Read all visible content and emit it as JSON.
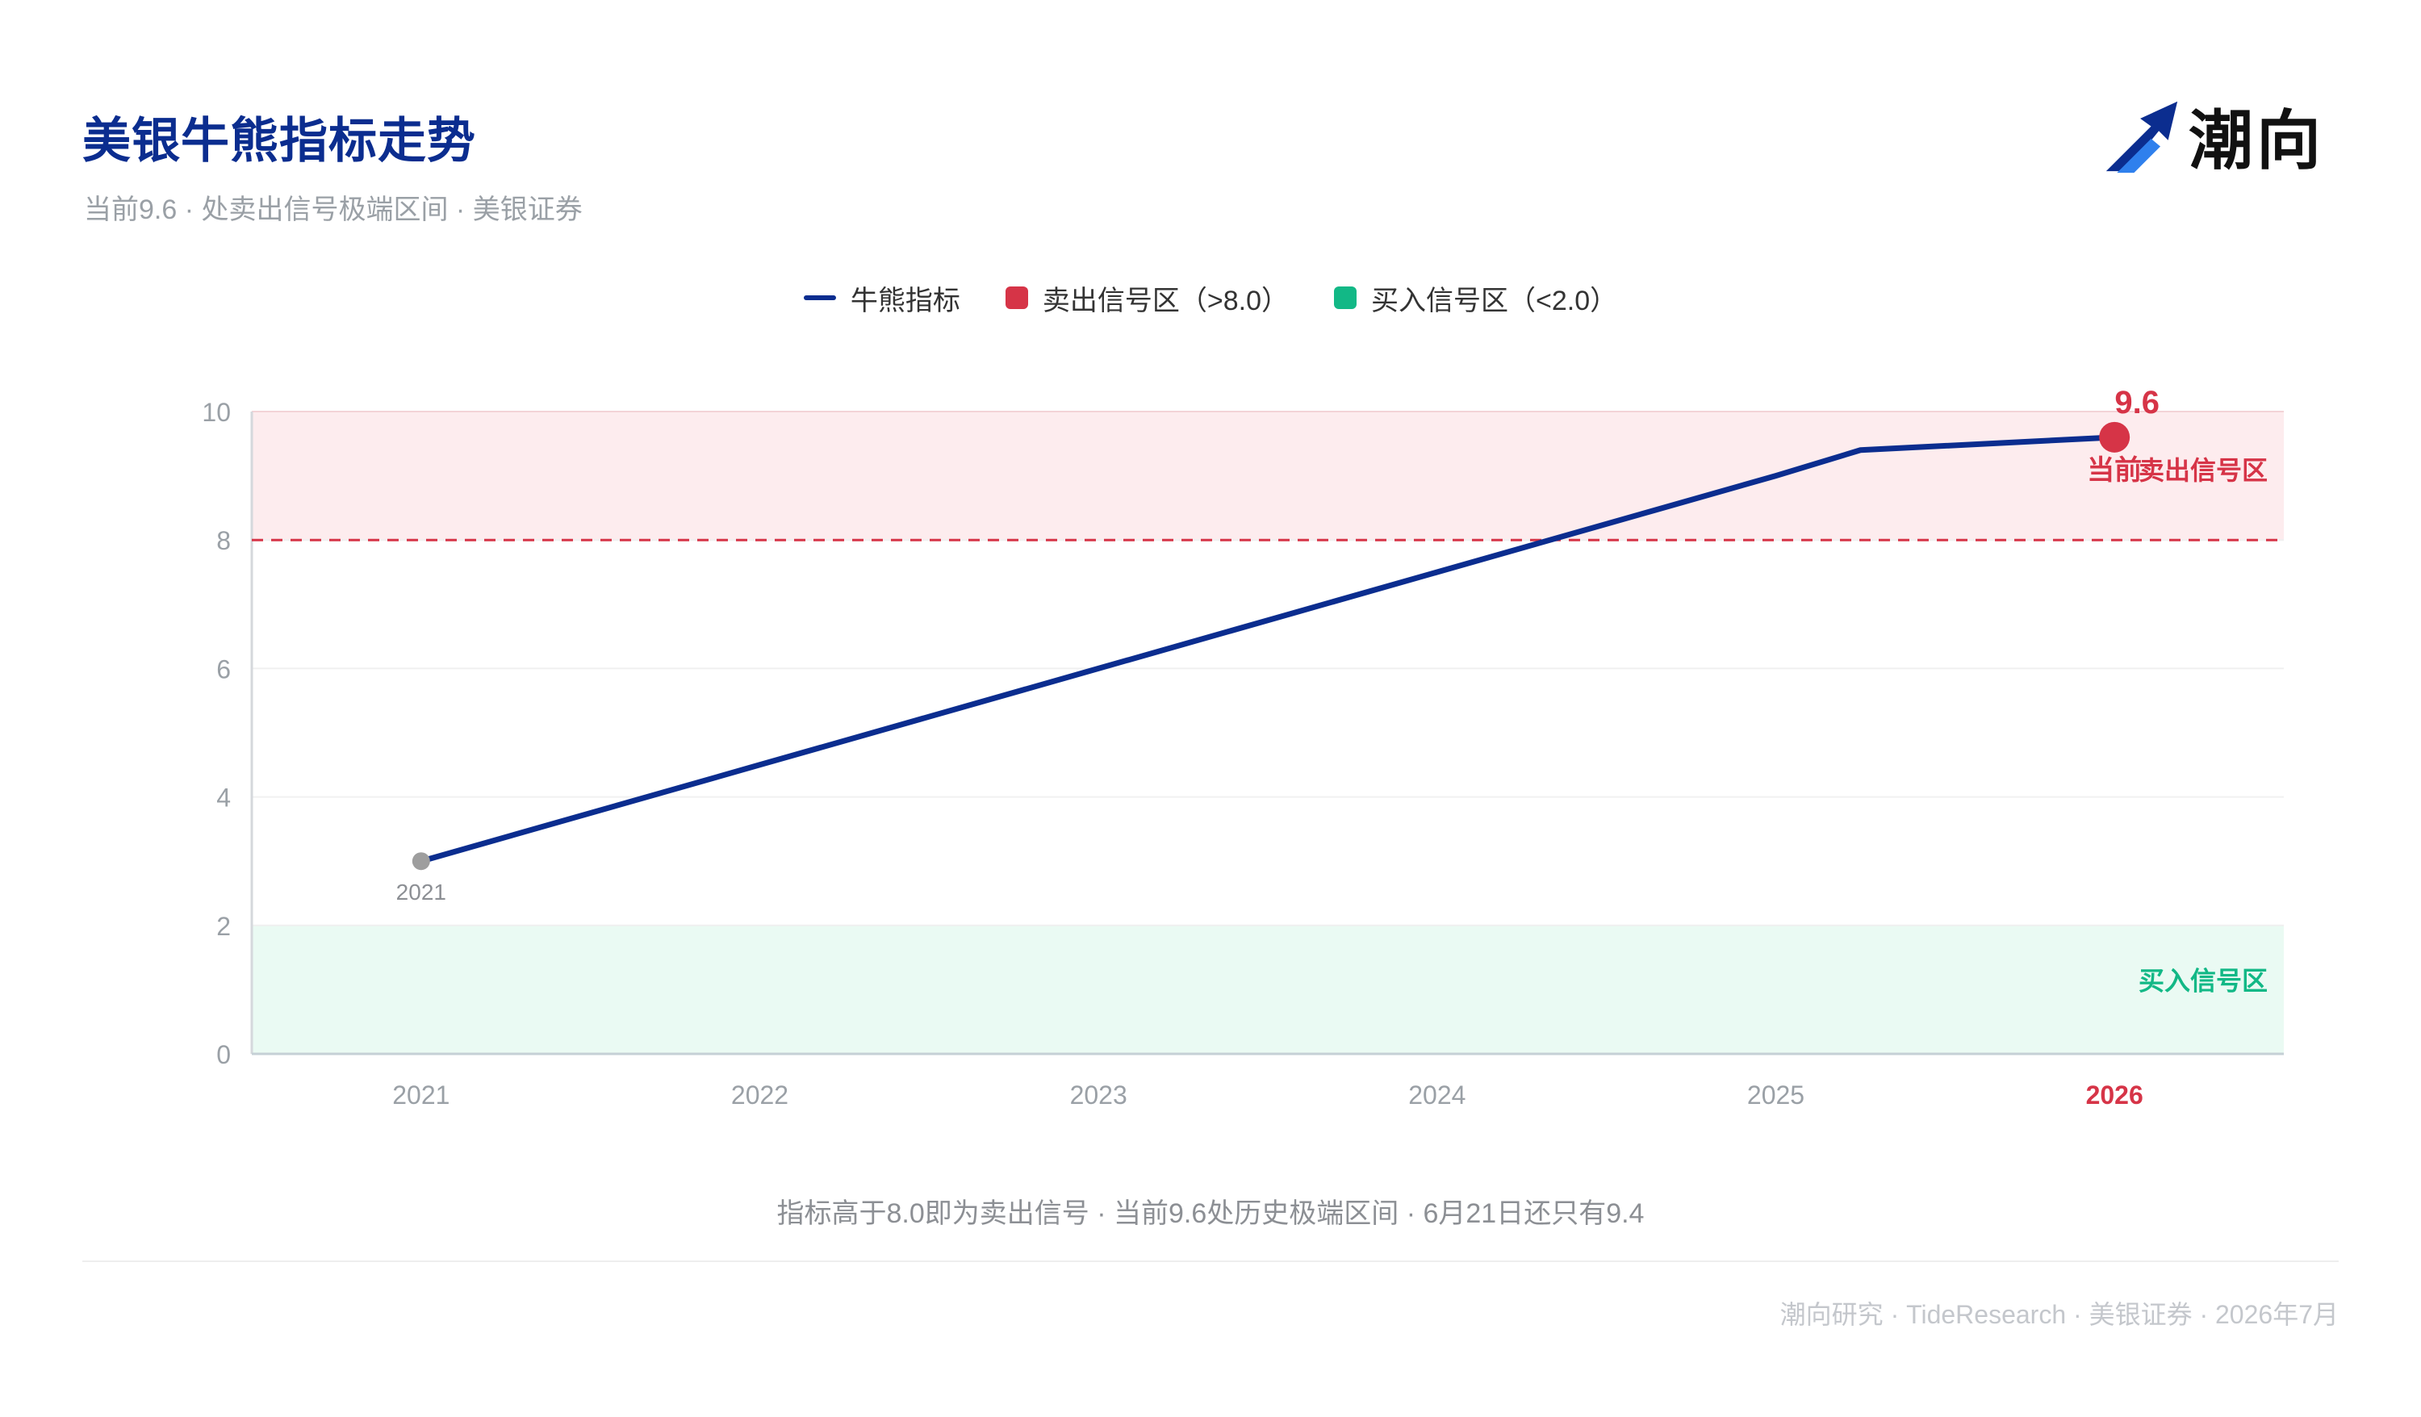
{
  "header": {
    "title": "美银牛熊指标走势",
    "subtitle": "当前9.6 · 处卖出信号极端区间 · 美银证券"
  },
  "logo": {
    "text": "潮向",
    "icon": "arrow-logo-icon"
  },
  "legend": [
    {
      "label": "牛熊指标",
      "color": "#0b2d8f",
      "shape": "line"
    },
    {
      "label": "卖出信号区（>8.0）",
      "color": "#d63447",
      "shape": "box"
    },
    {
      "label": "买入信号区（<2.0）",
      "color": "#12b886",
      "shape": "box"
    }
  ],
  "chart_data": {
    "type": "line",
    "x": [
      2021,
      2022,
      2023,
      2024,
      2025,
      2025.25,
      2026
    ],
    "series": [
      {
        "name": "牛熊指标",
        "values": [
          3.0,
          4.5,
          6.0,
          7.5,
          9.0,
          9.4,
          9.6
        ],
        "color": "#0b2d8f"
      }
    ],
    "xticks": [
      "2021",
      "2022",
      "2023",
      "2024",
      "2025",
      "2026"
    ],
    "yticks": [
      "0",
      "2",
      "4",
      "6",
      "8",
      "10"
    ],
    "xlim": [
      2020.5,
      2026.5
    ],
    "ylim": [
      0,
      10
    ],
    "highlight_tick": "2026",
    "sell_zone": {
      "from": 8,
      "to": 10,
      "label": "卖出信号区",
      "color": "#fdecee"
    },
    "buy_zone": {
      "from": 0,
      "to": 2,
      "label": "买入信号区",
      "color": "#eafaf3"
    },
    "threshold": {
      "value": 8,
      "color": "#d63447"
    },
    "start_point": {
      "x": 2021,
      "y": 3.0,
      "label": "2021"
    },
    "current_point": {
      "x": 2026,
      "y": 9.6,
      "value_label": "9.6",
      "label": "当前"
    },
    "grid": true,
    "legend_position": "top-center"
  },
  "colors": {
    "accent": "#0b2d8f",
    "sell": "#d63447",
    "buy": "#12b886",
    "muted": "#9aa0a6"
  },
  "note": "指标高于8.0即为卖出信号 · 当前9.6处历史极端区间 · 6月21日还只有9.4",
  "footer": "潮向研究 · TideResearch · 美银证券 · 2026年7月"
}
